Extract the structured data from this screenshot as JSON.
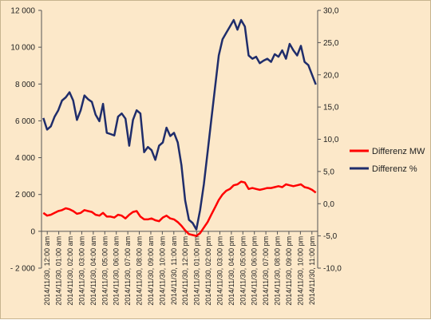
{
  "chart_data": {
    "type": "line",
    "title": "",
    "xlabel": "",
    "ylabel": "",
    "y_left_lim": [
      -2000,
      12000
    ],
    "y_left_ticks": [
      "- 2 000",
      "0",
      "2 000",
      "4 000",
      "6 000",
      "8 000",
      "10 000",
      "12 000"
    ],
    "y_left_tick_values": [
      -2000,
      0,
      2000,
      4000,
      6000,
      8000,
      10000,
      12000
    ],
    "y_right_lim": [
      -10,
      30
    ],
    "y_right_ticks": [
      "-10,0",
      "-5,0",
      "0,0",
      "5,0",
      "10,0",
      "15,0",
      "20,0",
      "25,0",
      "30,0"
    ],
    "y_right_tick_values": [
      -10,
      -5,
      0,
      5,
      10,
      15,
      20,
      25,
      30
    ],
    "x_labels": [
      "2014/11/30, 12:00 am",
      "2014/11/30, 01:00 am",
      "2014/11/30, 02:00 am",
      "2014/11/30, 03:00 am",
      "2014/11/30, 04:00 am",
      "2014/11/30, 05:00 am",
      "2014/11/30, 06:00 am",
      "2014/11/30, 07:00 am",
      "2014/11/30, 08:00 am",
      "2014/11/30, 09:00 am",
      "2014/11/30, 10:00 am",
      "2014/11/30, 11:00 am",
      "2014/11/30, 12:00 pm",
      "2014/11/30, 01:00 pm",
      "2014/11/30, 02:00 pm",
      "2014/11/30, 03:00 pm",
      "2014/11/30, 04:00 pm",
      "2014/11/30, 05:00 pm",
      "2014/11/30, 06:00 pm",
      "2014/11/30, 07:00 pm",
      "2014/11/30, 08:00 pm",
      "2014/11/30, 09:00 pm",
      "2014/11/30, 10:00 pm",
      "2014/11/30, 11:00 pm"
    ],
    "legend_position": "right",
    "grid": false,
    "series": [
      {
        "name": "Differenz MW",
        "axis": "left",
        "color": "#ff0000",
        "values": [
          1000,
          850,
          900,
          1000,
          1100,
          1150,
          1250,
          1200,
          1100,
          950,
          1000,
          1150,
          1100,
          1050,
          900,
          850,
          1000,
          800,
          800,
          750,
          900,
          850,
          700,
          900,
          1050,
          1100,
          800,
          650,
          650,
          700,
          600,
          550,
          750,
          850,
          700,
          650,
          500,
          300,
          50,
          -150,
          -200,
          -250,
          -100,
          200,
          500,
          900,
          1300,
          1700,
          2000,
          2200,
          2300,
          2500,
          2550,
          2700,
          2650,
          2300,
          2350,
          2300,
          2250,
          2300,
          2350,
          2350,
          2400,
          2450,
          2400,
          2550,
          2500,
          2450,
          2500,
          2550,
          2400,
          2350,
          2250,
          2100
        ]
      },
      {
        "name": "Differenz %",
        "axis": "right",
        "color": "#1f2d6b",
        "values": [
          13.3,
          11.5,
          12.0,
          13.5,
          14.5,
          16.0,
          16.5,
          17.3,
          16.0,
          13.0,
          14.5,
          16.8,
          16.2,
          15.8,
          13.8,
          12.8,
          15.5,
          11.0,
          10.8,
          10.6,
          13.5,
          14.0,
          13.2,
          9.0,
          13.0,
          14.5,
          14.0,
          8.0,
          8.8,
          8.3,
          6.8,
          9.0,
          9.5,
          11.8,
          10.5,
          11.0,
          9.5,
          6.0,
          0.5,
          -2.5,
          -3.0,
          -4.0,
          -1.0,
          3.0,
          8.0,
          13.0,
          18.0,
          23.0,
          25.5,
          26.5,
          27.5,
          28.5,
          27.0,
          28.5,
          27.5,
          23.0,
          22.5,
          22.8,
          21.8,
          22.2,
          22.5,
          22.0,
          23.2,
          22.8,
          23.8,
          22.5,
          24.8,
          23.8,
          23.0,
          24.5,
          22.0,
          21.5,
          20.0,
          18.5
        ]
      }
    ]
  }
}
